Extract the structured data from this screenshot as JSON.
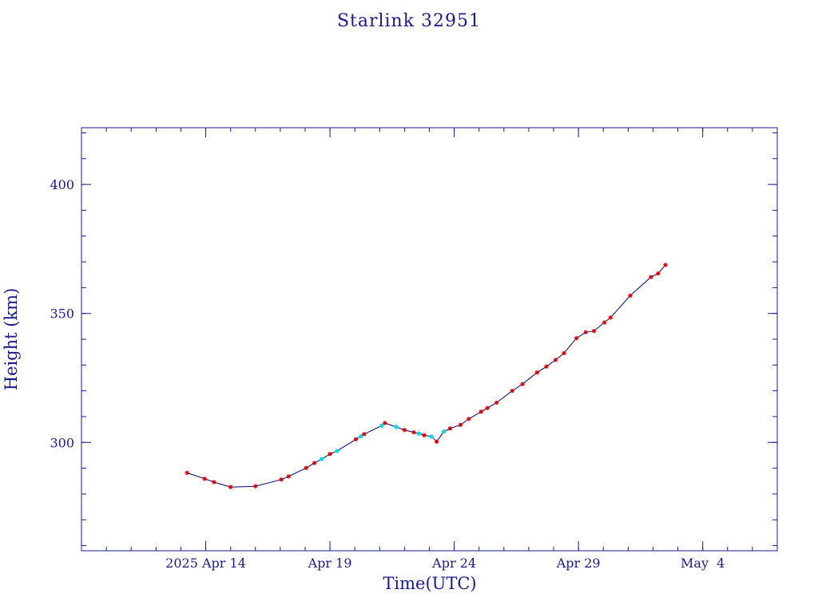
{
  "chart_data": {
    "type": "line",
    "title": "Starlink 32951",
    "xlabel": "Time(UTC)",
    "ylabel": "Height (km)",
    "x_unit": "date (UTC)",
    "xlim": [
      "2025-04-09T00:00",
      "2025-05-07T00:00"
    ],
    "ylim": [
      258,
      422
    ],
    "x_ticks": [
      {
        "date": "2025-04-14",
        "label": "2025 Apr 14"
      },
      {
        "date": "2025-04-19",
        "label": "Apr 19"
      },
      {
        "date": "2025-04-24",
        "label": "Apr 24"
      },
      {
        "date": "2025-04-29",
        "label": "Apr 29"
      },
      {
        "date": "2025-05-04",
        "label": "May  4"
      }
    ],
    "y_ticks": [
      300,
      350,
      400
    ],
    "grid": false,
    "colors": {
      "axes": "#1a1a8c",
      "line": "#000080",
      "marker_primary": "#dd0000",
      "marker_secondary": "#00d8e8"
    },
    "series": [
      {
        "marker": "red-star",
        "x": [
          "2025-04-13T06:00",
          "2025-04-13T23:00",
          "2025-04-14T08:00",
          "2025-04-15T00:00",
          "2025-04-16T00:00",
          "2025-04-17T01:00",
          "2025-04-17T08:00",
          "2025-04-18T01:00",
          "2025-04-18T09:00",
          "2025-04-19T00:00",
          "2025-04-20T01:00",
          "2025-04-20T09:00",
          "2025-04-21T05:00",
          "2025-04-22T00:00",
          "2025-04-22T09:00",
          "2025-04-22T19:00",
          "2025-04-23T07:00",
          "2025-04-23T20:00",
          "2025-04-24T06:00",
          "2025-04-24T14:00",
          "2025-04-25T02:00",
          "2025-04-25T08:00",
          "2025-04-25T17:00",
          "2025-04-26T08:00",
          "2025-04-26T18:00",
          "2025-04-27T08:00",
          "2025-04-27T17:00",
          "2025-04-28T02:00",
          "2025-04-28T10:00",
          "2025-04-28T22:00",
          "2025-04-29T07:00",
          "2025-04-29T15:00",
          "2025-04-30T01:00",
          "2025-04-30T07:00",
          "2025-05-01T02:00",
          "2025-05-01T22:00",
          "2025-05-02T05:00",
          "2025-05-02T12:00"
        ],
        "y": [
          288.2,
          285.9,
          284.6,
          282.7,
          283.0,
          285.6,
          286.8,
          290.1,
          292.0,
          295.5,
          301.2,
          303.2,
          307.5,
          304.8,
          303.9,
          302.8,
          300.3,
          305.4,
          306.8,
          309.1,
          311.9,
          313.3,
          315.4,
          320.0,
          322.6,
          327.1,
          329.4,
          332.0,
          334.6,
          340.4,
          342.7,
          343.2,
          346.5,
          348.4,
          356.9,
          364.1,
          365.5,
          368.8
        ]
      },
      {
        "marker": "cyan-dot",
        "x": [
          "2025-04-18T16:00",
          "2025-04-19T07:00",
          "2025-04-20T06:00",
          "2025-04-21T02:00",
          "2025-04-21T16:00",
          "2025-04-22T14:00",
          "2025-04-23T02:00",
          "2025-04-23T14:00"
        ],
        "y": [
          293.6,
          296.7,
          302.4,
          306.5,
          306.0,
          303.4,
          302.3,
          304.2
        ]
      }
    ],
    "line_path_order": "all points sorted by time"
  }
}
